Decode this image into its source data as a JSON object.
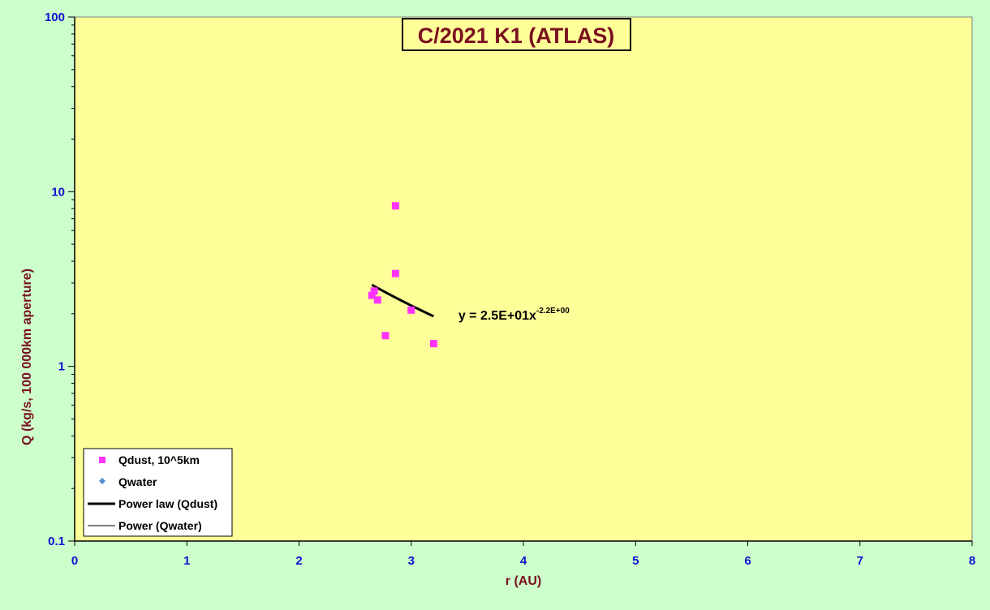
{
  "colors": {
    "outer_bg": "#ccffcc",
    "plot_bg": "#ffff99",
    "qdust": "#ff33ff",
    "qwater": "#4f8fd0",
    "axis_title": "#7a1020",
    "tick_label": "#1010d0",
    "fit_line": "#000000"
  },
  "chart_data": {
    "type": "scatter",
    "title": "C/2021 K1 (ATLAS)",
    "xlabel": "r (AU)",
    "ylabel": "Q (kg/s, 100 000km aperture)",
    "xlim": [
      0,
      8
    ],
    "ylim": [
      0.1,
      100
    ],
    "yscale": "log",
    "grid": false,
    "legend_position": "bottom-left",
    "x_ticks": [
      "0",
      "1",
      "2",
      "3",
      "4",
      "5",
      "6",
      "7",
      "8"
    ],
    "y_ticks": [
      "0.1",
      "1",
      "10",
      "100"
    ],
    "series": [
      {
        "name": "Qdust, 10^5km",
        "type": "scatter",
        "marker": "square",
        "points": [
          {
            "x": 2.65,
            "y": 2.55
          },
          {
            "x": 2.67,
            "y": 2.7
          },
          {
            "x": 2.7,
            "y": 2.4
          },
          {
            "x": 2.77,
            "y": 1.5
          },
          {
            "x": 2.86,
            "y": 3.4
          },
          {
            "x": 2.86,
            "y": 8.3
          },
          {
            "x": 3.0,
            "y": 2.1
          },
          {
            "x": 3.2,
            "y": 1.35
          }
        ]
      },
      {
        "name": "Qwater",
        "type": "scatter",
        "marker": "diamond",
        "points": []
      },
      {
        "name": "Power law (Qdust)",
        "type": "line",
        "style": "thick",
        "fit": {
          "a": 25,
          "b": -2.2,
          "x_range": [
            2.65,
            3.2
          ]
        }
      },
      {
        "name": "Power (Qwater)",
        "type": "line",
        "style": "thin",
        "points": []
      }
    ],
    "annotations": [
      {
        "base": "y = 2.5E+01x",
        "exponent": "-2.2E+00",
        "x": 3.42,
        "y": 1.85
      }
    ]
  }
}
